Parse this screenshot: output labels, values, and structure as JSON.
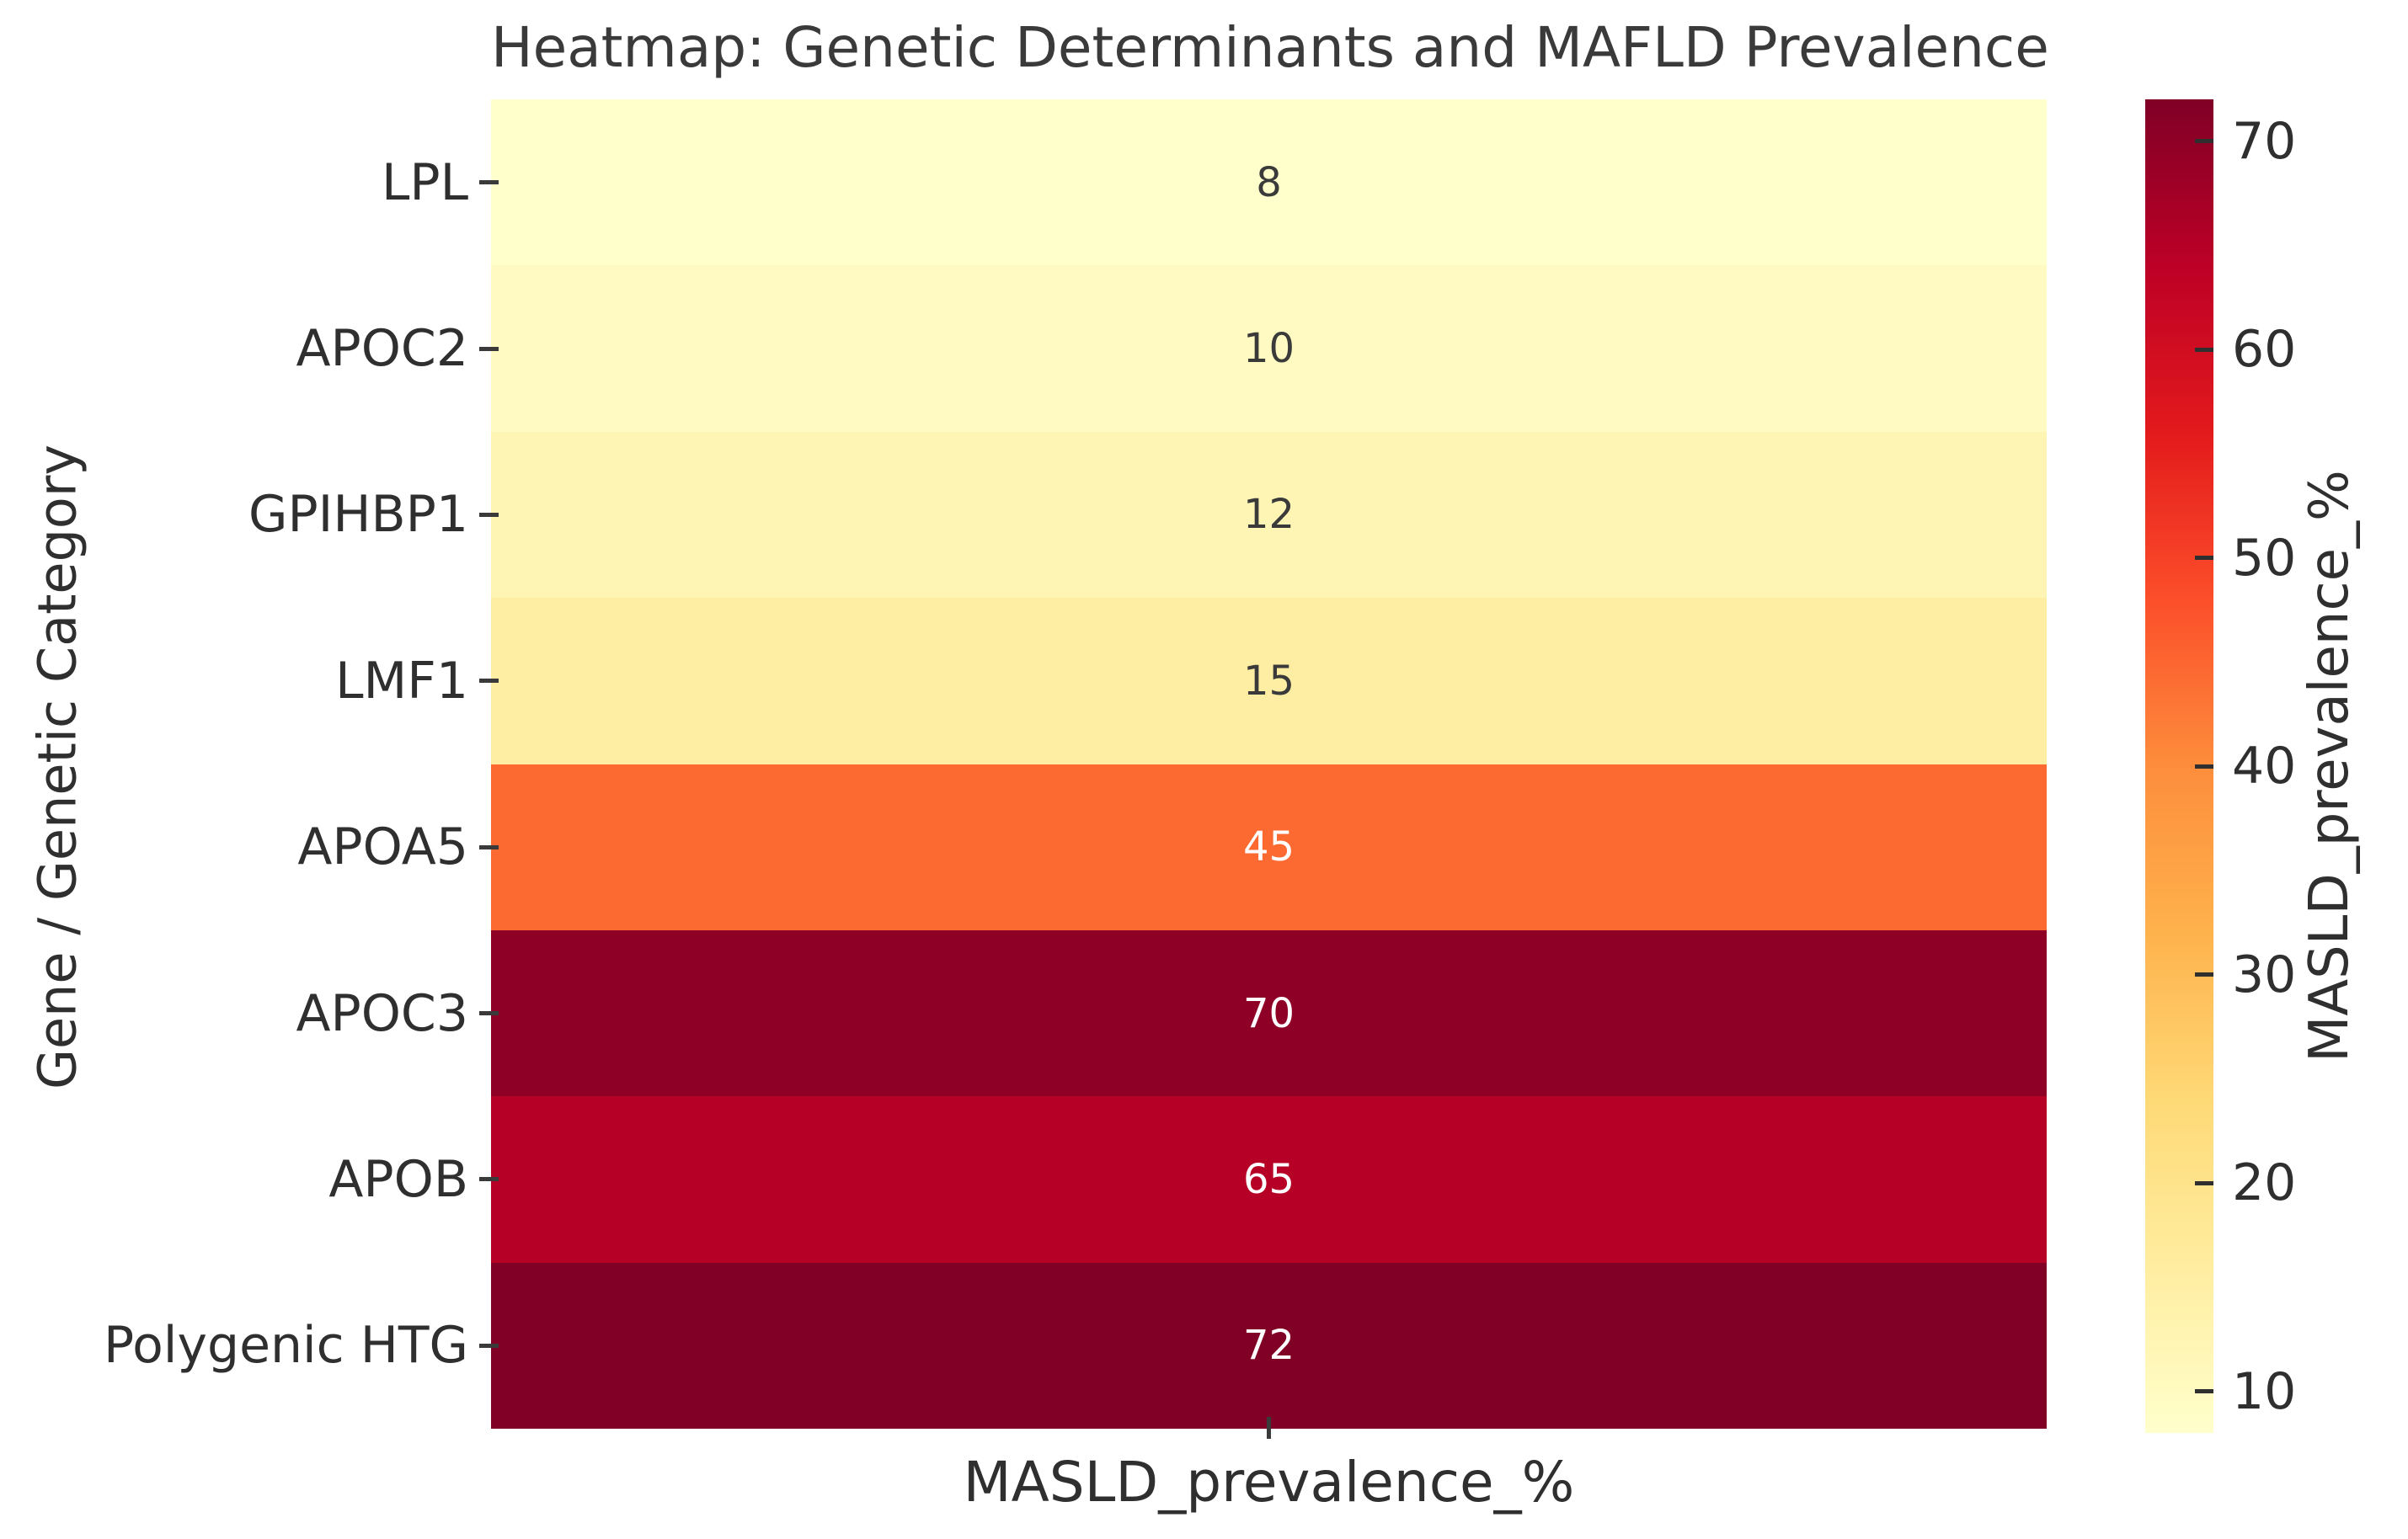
{
  "title": "Heatmap: Genetic Determinants and MAFLD Prevalence",
  "x_axis_label": "MASLD_prevalence_%",
  "y_axis_label": "Gene / Genetic Category",
  "colorbar": {
    "label": "MASLD_prevalence_%",
    "tick_values": [
      70,
      60,
      50,
      40,
      30,
      20,
      10
    ],
    "vmin": 8,
    "vmax": 72,
    "gradient_top_to_bottom": [
      "#800026",
      "#bd0026",
      "#e31a1c",
      "#fc4e2a",
      "#fd8d3c",
      "#feb24c",
      "#fed976",
      "#ffeda0",
      "#ffffcc"
    ]
  },
  "chart_data": {
    "type": "heatmap",
    "title": "Heatmap: Genetic Determinants and MAFLD Prevalence",
    "xlabel": "MASLD_prevalence_%",
    "ylabel": "Gene / Genetic Category",
    "columns": [
      "MASLD_prevalence_%"
    ],
    "colormap": "YlOrRd",
    "vmin": 8,
    "vmax": 72,
    "grid": false,
    "legend_position": "right-colorbar",
    "rows": [
      {
        "label": "LPL",
        "value": 8,
        "cell_color": "#ffffcc",
        "text_color": "#3a3a3a"
      },
      {
        "label": "APOC2",
        "value": 10,
        "cell_color": "#fffac1",
        "text_color": "#3a3a3a"
      },
      {
        "label": "GPIHBP1",
        "value": 12,
        "cell_color": "#fef5b4",
        "text_color": "#3a3a3a"
      },
      {
        "label": "LMF1",
        "value": 15,
        "cell_color": "#feeea3",
        "text_color": "#3a3a3a"
      },
      {
        "label": "APOA5",
        "value": 45,
        "cell_color": "#fc6a32",
        "text_color": "#ffffff"
      },
      {
        "label": "APOC3",
        "value": 70,
        "cell_color": "#8f0026",
        "text_color": "#ffffff"
      },
      {
        "label": "APOB",
        "value": 65,
        "cell_color": "#b70026",
        "text_color": "#ffffff"
      },
      {
        "label": "Polygenic HTG",
        "value": 72,
        "cell_color": "#800026",
        "text_color": "#ffffff"
      }
    ]
  }
}
